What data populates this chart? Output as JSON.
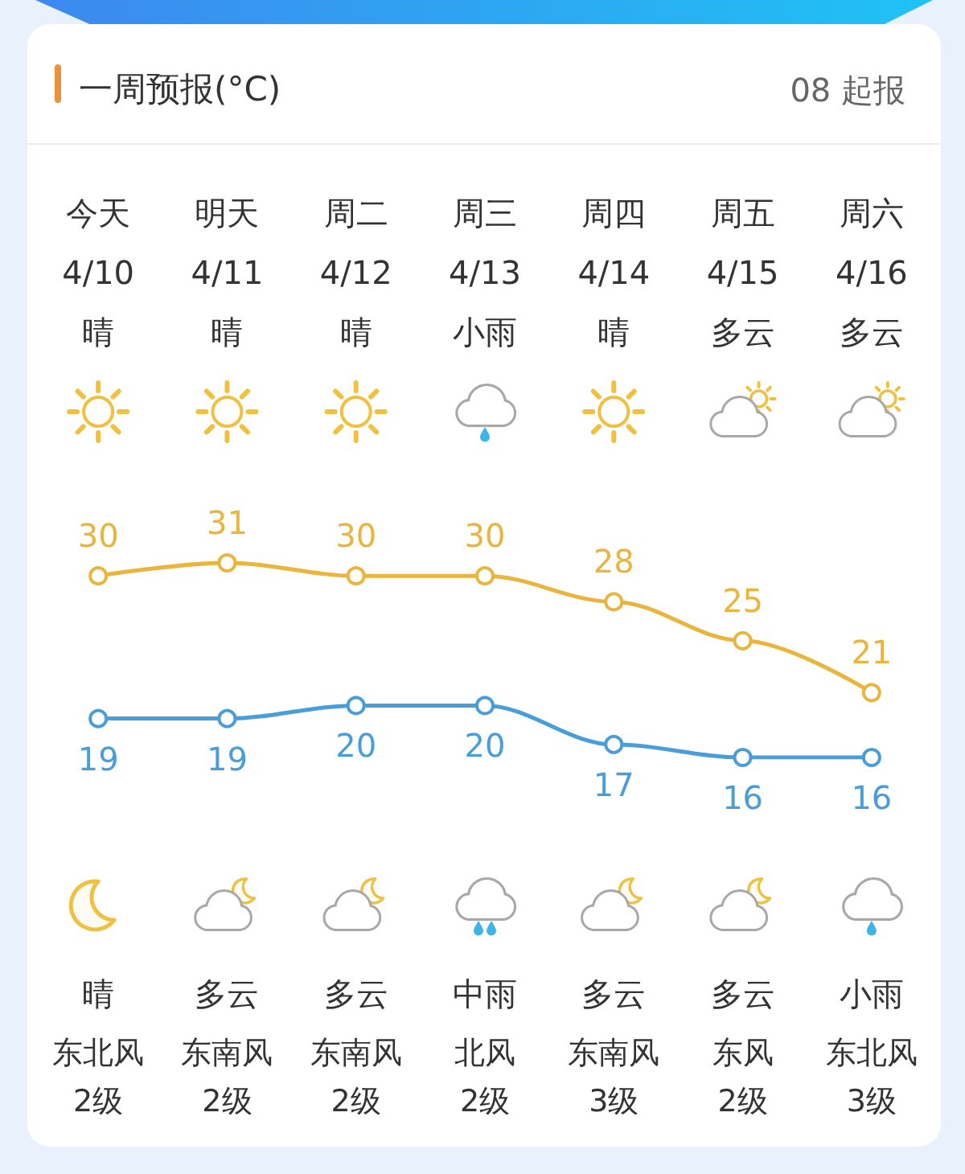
{
  "chart_data": {
    "type": "line",
    "title": "一周预报(°C)",
    "subtitle": "08 起报",
    "categories": [
      "今天\n4/10\n晴",
      "明天\n4/11\n晴",
      "周二\n4/12\n晴",
      "周三\n4/13\n小雨",
      "周四\n4/14\n晴",
      "周五\n4/15\n多云",
      "周六\n4/16\n多云"
    ],
    "series": [
      {
        "color": "#eab53c",
        "values": [
          30,
          31,
          30,
          30,
          28,
          25,
          21
        ]
      },
      {
        "color": "#4a9ed8",
        "values": [
          19,
          19,
          20,
          20,
          17,
          16,
          16
        ]
      }
    ],
    "annotations": [
      "晴",
      "多云",
      "多云",
      "中雨",
      "多云",
      "多云",
      "小雨",
      "东北风",
      "东南风",
      "东南风",
      "北风",
      "东南风",
      "东风",
      "东北风",
      "2级",
      "2级",
      "2级",
      "2级",
      "3级",
      "2级",
      "3级"
    ],
    "data_labels": true,
    "marker": "circle",
    "tick_labels": "x"
  }
}
